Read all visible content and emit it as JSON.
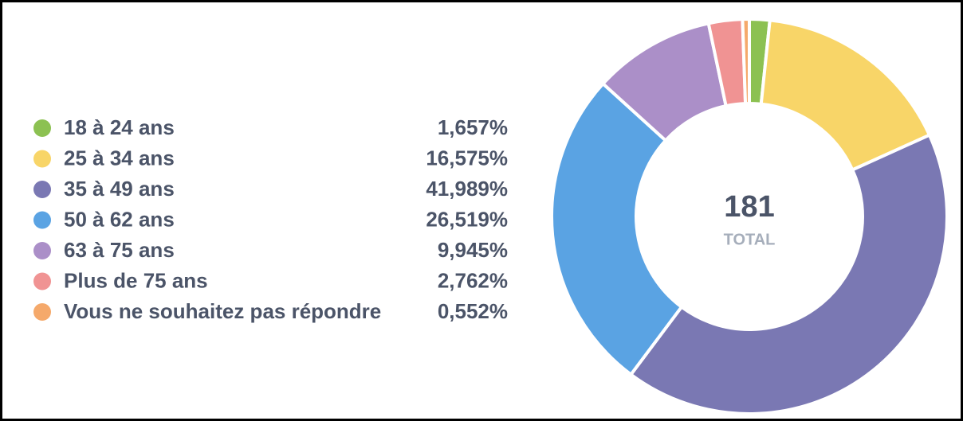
{
  "chart_data": {
    "type": "donut",
    "categories": [
      "18 à 24 ans",
      "25 à 34 ans",
      "35 à 49 ans",
      "50 à 62 ans",
      "63 à 75 ans",
      "Plus de 75 ans",
      "Vous ne souhaitez pas répondre"
    ],
    "values": [
      1.657,
      16.575,
      41.989,
      26.519,
      9.945,
      2.762,
      0.552
    ],
    "value_labels": [
      "1,657%",
      "16,575%",
      "41,989%",
      "26,519%",
      "9,945%",
      "2,762%",
      "0,552%"
    ],
    "colors": [
      "#8cc152",
      "#f8d568",
      "#7a78b3",
      "#5aa3e3",
      "#ab8fc8",
      "#f09393",
      "#f5a96b"
    ],
    "center_value": 181,
    "center_label": "TOTAL"
  }
}
